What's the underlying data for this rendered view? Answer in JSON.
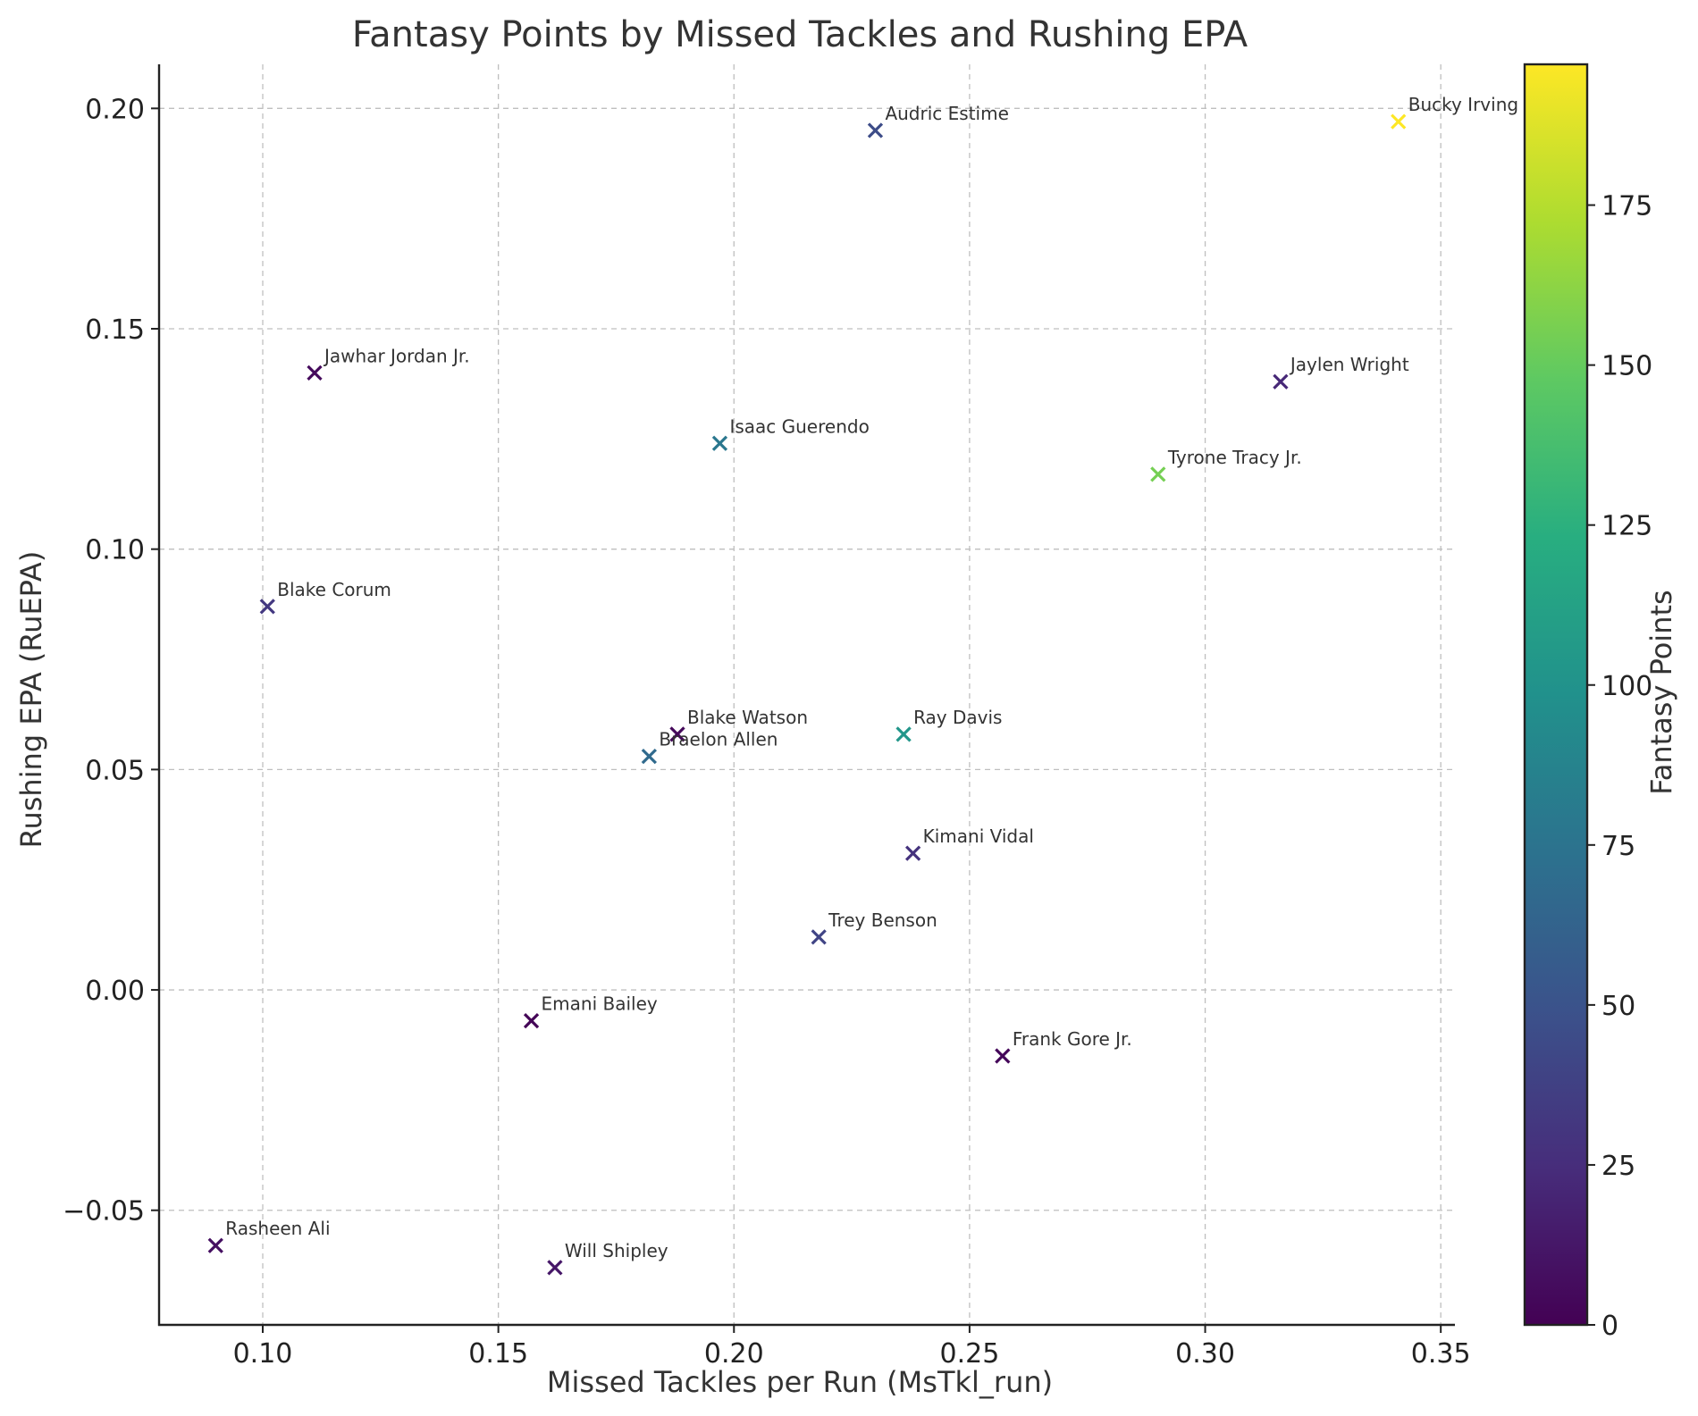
{
  "chart_data": {
    "type": "scatter",
    "title": "Fantasy Points by Missed Tackles and Rushing EPA",
    "xlabel": "Missed Tackles per Run (MsTkl_run)",
    "ylabel": "Rushing EPA (RuEPA)",
    "colorbar_label": "Fantasy Points",
    "colormap": "viridis",
    "marker": "x",
    "xlim": [
      0.078,
      0.353
    ],
    "ylim": [
      -0.076,
      0.21
    ],
    "xticks": [
      0.1,
      0.15,
      0.2,
      0.25,
      0.3,
      0.35
    ],
    "xtick_labels": [
      "0.10",
      "0.15",
      "0.20",
      "0.25",
      "0.30",
      "0.35"
    ],
    "yticks": [
      -0.05,
      0.0,
      0.05,
      0.1,
      0.15,
      0.2
    ],
    "ytick_labels": [
      "−0.05",
      "0.00",
      "0.05",
      "0.10",
      "0.15",
      "0.20"
    ],
    "colorbar_range": [
      0,
      197
    ],
    "colorbar_ticks": [
      0,
      25,
      50,
      75,
      100,
      125,
      150,
      175
    ],
    "colorbar_tick_labels": [
      "0",
      "25",
      "50",
      "75",
      "100",
      "125",
      "150",
      "175"
    ],
    "grid": true,
    "points": [
      {
        "name": "Bucky Irving",
        "x": 0.341,
        "y": 0.197,
        "fantasy_points": 197
      },
      {
        "name": "Audric Estime",
        "x": 0.23,
        "y": 0.195,
        "fantasy_points": 45
      },
      {
        "name": "Jawhar Jordan Jr.",
        "x": 0.111,
        "y": 0.14,
        "fantasy_points": 5
      },
      {
        "name": "Jaylen Wright",
        "x": 0.316,
        "y": 0.138,
        "fantasy_points": 22
      },
      {
        "name": "Isaac Guerendo",
        "x": 0.197,
        "y": 0.124,
        "fantasy_points": 78
      },
      {
        "name": "Tyrone Tracy Jr.",
        "x": 0.29,
        "y": 0.117,
        "fantasy_points": 155
      },
      {
        "name": "Blake Corum",
        "x": 0.101,
        "y": 0.087,
        "fantasy_points": 32
      },
      {
        "name": "Blake Watson",
        "x": 0.188,
        "y": 0.058,
        "fantasy_points": 4
      },
      {
        "name": "Braelon Allen",
        "x": 0.182,
        "y": 0.053,
        "fantasy_points": 68
      },
      {
        "name": "Ray Davis",
        "x": 0.236,
        "y": 0.058,
        "fantasy_points": 103
      },
      {
        "name": "Kimani Vidal",
        "x": 0.238,
        "y": 0.031,
        "fantasy_points": 28
      },
      {
        "name": "Trey Benson",
        "x": 0.218,
        "y": 0.012,
        "fantasy_points": 40
      },
      {
        "name": "Emani Bailey",
        "x": 0.157,
        "y": -0.007,
        "fantasy_points": 2
      },
      {
        "name": "Frank Gore Jr.",
        "x": 0.257,
        "y": -0.015,
        "fantasy_points": 3
      },
      {
        "name": "Rasheen Ali",
        "x": 0.09,
        "y": -0.058,
        "fantasy_points": 8
      },
      {
        "name": "Will Shipley",
        "x": 0.162,
        "y": -0.063,
        "fantasy_points": 12
      }
    ]
  }
}
